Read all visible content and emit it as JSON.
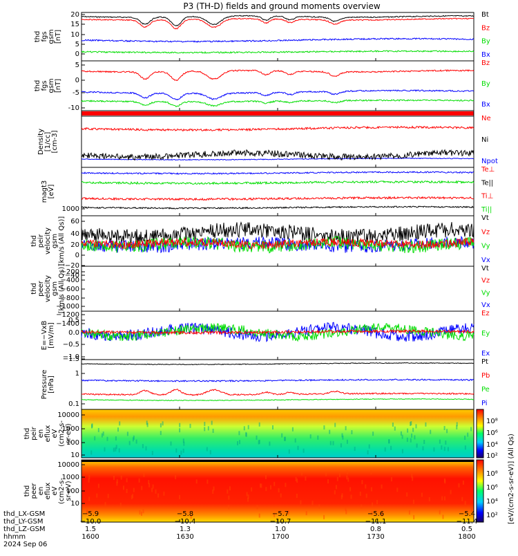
{
  "title": "P3 (TH-D) fields and ground moments overview",
  "colors": {
    "black": "#000000",
    "red": "#ff0000",
    "green": "#00dd00",
    "blue": "#0000ff"
  },
  "panels": [
    {
      "id": "fgs-gsm-btot",
      "ylabel": [
        "thd",
        "fgs",
        "gsm",
        "[nT]"
      ],
      "ticks": [
        "20",
        "15",
        "10",
        "5",
        "0"
      ],
      "legend": [
        [
          "Bt",
          "black"
        ],
        [
          "Bz",
          "red"
        ],
        [
          "By",
          "green"
        ],
        [
          "Bx",
          "blue"
        ]
      ]
    },
    {
      "id": "fgs-gsm",
      "ylabel": [
        "thd",
        "fgs",
        "gsm",
        "[nT]"
      ],
      "ticks": [
        "5",
        "0",
        "-5",
        "-10"
      ],
      "legend": [
        [
          "Bz",
          "red"
        ],
        [
          "By",
          "green"
        ],
        [
          "Bx",
          "blue"
        ]
      ]
    },
    {
      "id": "red-bar",
      "ylabel": [],
      "ticks": [],
      "legend": []
    },
    {
      "id": "density",
      "ylabel": [
        "Density",
        "[1/cc]",
        "[cm-3]"
      ],
      "ticks": [],
      "legend": [
        [
          "Ne",
          "red"
        ],
        [
          "Ni",
          "black"
        ],
        [
          "Npot",
          "blue"
        ]
      ]
    },
    {
      "id": "temp",
      "ylabel": [
        "magt3",
        "[eV]"
      ],
      "ticks": [
        "1000"
      ],
      "legend": [
        [
          "Te⊥",
          "red"
        ],
        [
          "Te||",
          "black"
        ],
        [
          "Ti⊥",
          "red"
        ],
        [
          "Ti||",
          "green"
        ]
      ]
    },
    {
      "id": "peir-vel",
      "ylabel": [
        "thd",
        "peir",
        "velocity",
        "gsm",
        "[km/s (All Qs)]"
      ],
      "ticks": [
        "60",
        "40",
        "20",
        "0",
        "−20",
        "−40"
      ],
      "legend": [
        [
          "Vt",
          "black"
        ],
        [
          "Vz",
          "red"
        ],
        [
          "Vy",
          "green"
        ],
        [
          "Vx",
          "blue"
        ]
      ]
    },
    {
      "id": "peer-vel",
      "ylabel": [
        "thd",
        "peer",
        "velocity",
        "gsm",
        "[km/s (All Qs)]"
      ],
      "ticks": [
        "−200",
        "−400",
        "−600",
        "−800",
        "−1000",
        "−1200",
        "−1400"
      ],
      "legend": [
        [
          "Vt",
          "black"
        ],
        [
          "Vz",
          "red"
        ],
        [
          "Vy",
          "green"
        ],
        [
          "Vx",
          "blue"
        ]
      ]
    },
    {
      "id": "efield",
      "ylabel": [
        "E=−VxB",
        "[mV/m]"
      ],
      "ticks": [
        "0.5",
        "0.0",
        "−0.5",
        "−1.0",
        "−1.5"
      ],
      "legend": [
        [
          "Ez",
          "red"
        ],
        [
          "Ey",
          "green"
        ],
        [
          "Ex",
          "blue"
        ]
      ]
    },
    {
      "id": "pressure",
      "ylabel": [
        "Pressure",
        "[nPa]"
      ],
      "ticks": [
        "1",
        "0.1"
      ],
      "legend": [
        [
          "Pt",
          "black"
        ],
        [
          "Pb",
          "red"
        ],
        [
          "Pe",
          "green"
        ],
        [
          "Pi",
          "blue"
        ]
      ]
    },
    {
      "id": "peir-spec",
      "ylabel": [
        "thd",
        "peir",
        "en",
        "eflux",
        "eV",
        "(cm2-s-",
        "sr-eV)"
      ],
      "ticks": [
        "10000",
        "1000",
        "100",
        "10"
      ],
      "legend": []
    },
    {
      "id": "peer-spec",
      "ylabel": [
        "thd",
        "peer",
        "en",
        "eflux",
        "eV",
        "(cm2-s-",
        "sr-eV)"
      ],
      "ticks": [
        "10000",
        "1000",
        "100",
        "10"
      ],
      "legend": []
    }
  ],
  "colorbar": {
    "label": "[eV/(cm2-s-sr-eV)] (All Qs)",
    "top_ticks": [
      "10⁸",
      "10⁶",
      "10⁴",
      "10²"
    ],
    "bottom_ticks": [
      "10⁸",
      "10⁶",
      "10⁴",
      "10²"
    ]
  },
  "footer": {
    "rows": [
      {
        "label": "thd_LX-GSM",
        "values": [
          "−5.9",
          "−5.8",
          "−5.7",
          "−5.6",
          "−5.4"
        ]
      },
      {
        "label": "thd_LY-GSM",
        "values": [
          "−10.0",
          "−10.4",
          "−10.7",
          "−11.1",
          "−11.4"
        ]
      },
      {
        "label": "thd_LZ-GSM",
        "values": [
          "1.5",
          "1.3",
          "1.0",
          "0.8",
          "0.5"
        ]
      },
      {
        "label": "hhmm",
        "values": [
          "1600",
          "1630",
          "1700",
          "1730",
          "1800"
        ]
      }
    ],
    "date": "2024 Sep 06"
  },
  "chart_data": {
    "type": "line",
    "title": "P3 (TH-D) fields and ground moments overview",
    "x_axis": {
      "label": "hhmm",
      "categories": [
        "1600",
        "1630",
        "1700",
        "1730",
        "1800"
      ],
      "date": "2024 Sep 06"
    },
    "series": [
      {
        "name": "Bt",
        "values": [
          20,
          17,
          19,
          20,
          20
        ]
      },
      {
        "name": "Bz",
        "values": [
          18,
          16,
          18,
          19,
          19
        ]
      },
      {
        "name": "By",
        "values": [
          0,
          0,
          0,
          -1,
          0
        ]
      },
      {
        "name": "Bx",
        "values": [
          9,
          6,
          5,
          4,
          3
        ]
      },
      {
        "name": "Ex",
        "values": [
          0.2,
          -0.5,
          0.0,
          0.1,
          0.0
        ]
      },
      {
        "name": "Ey",
        "values": [
          0.3,
          -0.6,
          0.1,
          0.2,
          0.0
        ]
      },
      {
        "name": "Ez",
        "values": [
          0.0,
          0.0,
          0.0,
          0.0,
          0.0
        ]
      }
    ]
  }
}
